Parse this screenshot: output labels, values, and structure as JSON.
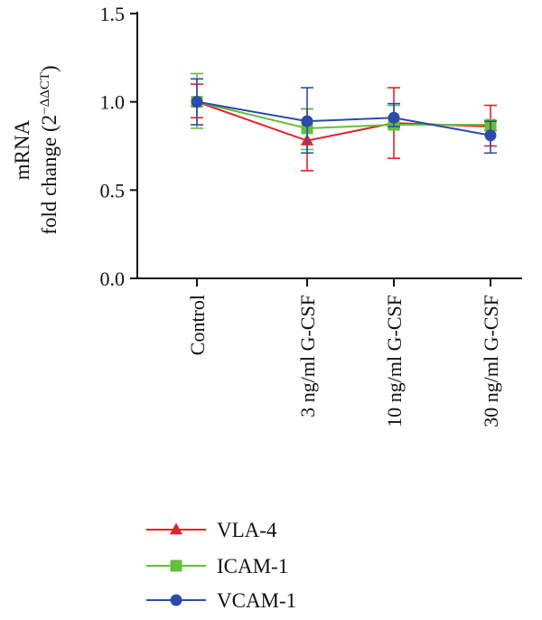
{
  "chart_data": {
    "type": "line",
    "title": "",
    "xlabel": "",
    "ylabel_line1": "mRNA",
    "ylabel_line2_prefix": "fold change (2",
    "ylabel_superscript": "−ΔΔCT",
    "ylabel_line2_suffix": ")",
    "categories": [
      "Control",
      "3 ng/ml G-CSF",
      "10 ng/ml G-CSF",
      "30 ng/ml G-CSF"
    ],
    "ylim": [
      0,
      1.5
    ],
    "yticks": [
      "0.0",
      "0.5",
      "1.0",
      "1.5"
    ],
    "grid": false,
    "legend_position": "bottom-left",
    "series": [
      {
        "name": "VLA-4",
        "color": "#e8202a",
        "marker": "triangle",
        "values": [
          1.0,
          0.78,
          0.88,
          0.86
        ],
        "error_low": [
          0.91,
          0.61,
          0.68,
          0.75
        ],
        "error_high": [
          1.1,
          0.96,
          1.08,
          0.98
        ]
      },
      {
        "name": "ICAM-1",
        "color": "#66bf3a",
        "marker": "square",
        "values": [
          1.0,
          0.85,
          0.87,
          0.87
        ],
        "error_low": [
          0.85,
          0.73,
          0.85,
          0.84
        ],
        "error_high": [
          1.16,
          0.96,
          0.98,
          0.89
        ]
      },
      {
        "name": "VCAM-1",
        "color": "#2d4ba8",
        "marker": "circle",
        "values": [
          1.0,
          0.89,
          0.91,
          0.81
        ],
        "error_low": [
          0.87,
          0.71,
          0.86,
          0.71
        ],
        "error_high": [
          1.13,
          1.08,
          0.99,
          0.89
        ]
      }
    ]
  }
}
